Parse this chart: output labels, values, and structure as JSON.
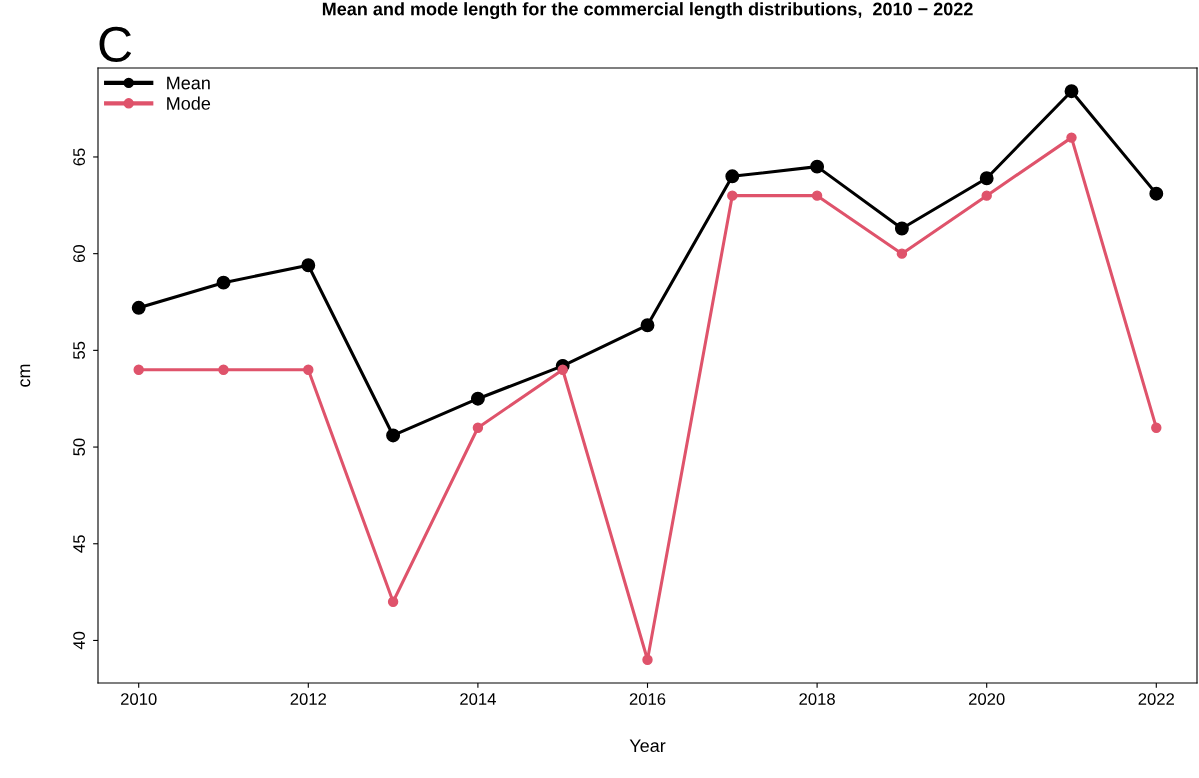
{
  "chart_data": {
    "type": "line",
    "title": "Mean and mode length for the commercial length distributions,  2010 − 2022",
    "xlabel": "Year",
    "ylabel": "cm",
    "annotations": [
      "C"
    ],
    "x": [
      2010,
      2011,
      2012,
      2013,
      2014,
      2015,
      2016,
      2017,
      2018,
      2019,
      2020,
      2021,
      2022
    ],
    "series": [
      {
        "name": "Mean",
        "color": "#000000",
        "values": [
          57.2,
          58.5,
          59.4,
          50.6,
          52.5,
          54.2,
          56.3,
          64.0,
          64.5,
          61.3,
          63.9,
          68.4,
          63.1
        ]
      },
      {
        "name": "Mode",
        "color": "#df536b",
        "values": [
          54,
          54,
          54,
          42,
          51,
          54,
          39,
          63,
          63,
          60,
          63,
          66,
          51
        ]
      }
    ],
    "xlim": [
      2009.52,
      2022.48
    ],
    "ylim": [
      37.8,
      69.6
    ],
    "xticks": [
      2010,
      2012,
      2014,
      2016,
      2018,
      2020,
      2022
    ],
    "yticks": [
      40,
      45,
      50,
      55,
      60,
      65
    ],
    "grid": false,
    "legend": "top left",
    "marker": "circle",
    "line_style": "solid"
  }
}
